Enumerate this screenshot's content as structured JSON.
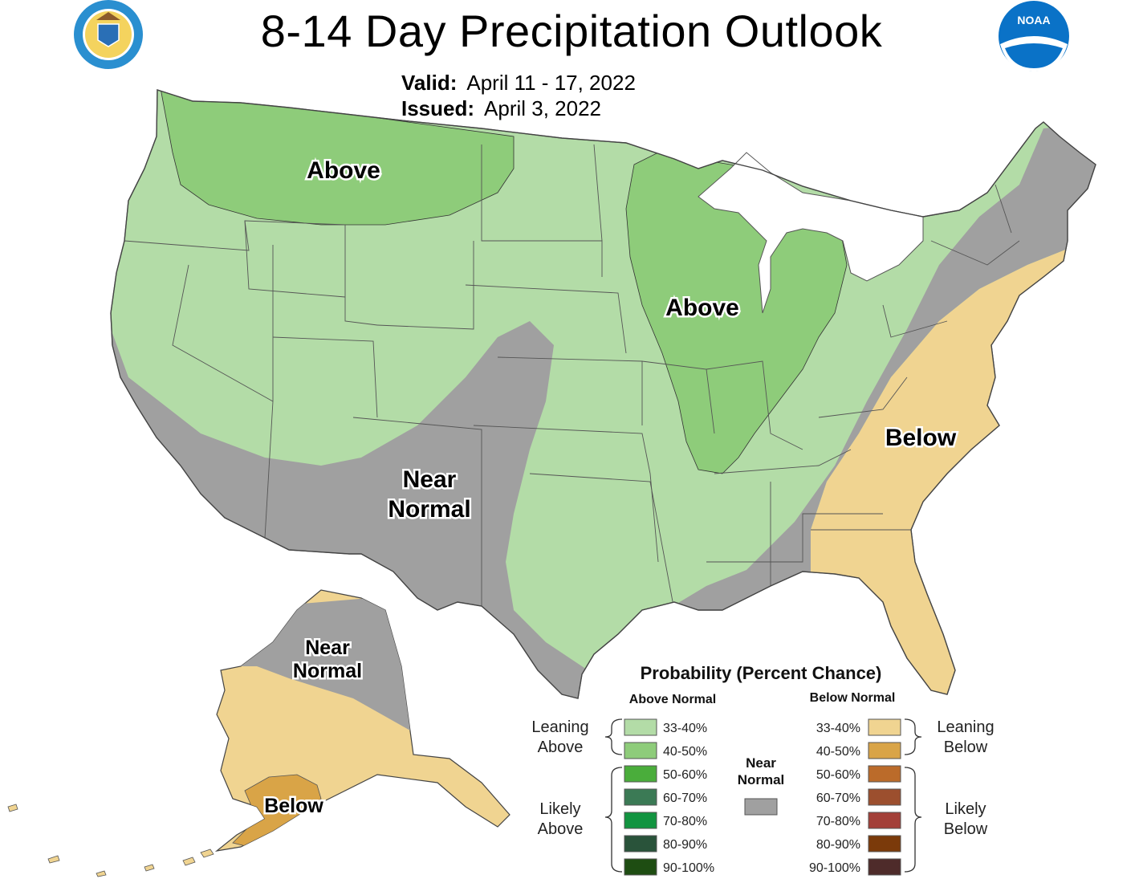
{
  "header": {
    "title": "8-14 Day Precipitation Outlook",
    "valid_label": "Valid:",
    "valid_value": "April 11 - 17, 2022",
    "issued_label": "Issued:",
    "issued_value": "April 3, 2022"
  },
  "logos": {
    "left": {
      "icon": "department-of-commerce-seal"
    },
    "right": {
      "icon": "noaa-logo"
    }
  },
  "map_labels": {
    "northwest": "Above",
    "midwest": "Above",
    "southwest_line1": "Near",
    "southwest_line2": "Normal",
    "southeast": "Below",
    "alaska_north_line1": "Near",
    "alaska_north_line2": "Normal",
    "alaska_south": "Below"
  },
  "legend": {
    "title": "Probability (Percent Chance)",
    "above_header": "Above Normal",
    "below_header": "Below Normal",
    "near_label_line1": "Near",
    "near_label_line2": "Normal",
    "near_color": "#a0a0a0",
    "leaning_above_line1": "Leaning",
    "leaning_above_line2": "Above",
    "likely_above_line1": "Likely",
    "likely_above_line2": "Above",
    "leaning_below_line1": "Leaning",
    "leaning_below_line2": "Below",
    "likely_below_line1": "Likely",
    "likely_below_line2": "Below",
    "above": [
      {
        "range": "33-40%",
        "color": "#b3dca7"
      },
      {
        "range": "40-50%",
        "color": "#8ecc7a"
      },
      {
        "range": "50-60%",
        "color": "#4aad3b"
      },
      {
        "range": "60-70%",
        "color": "#3b7a55"
      },
      {
        "range": "70-80%",
        "color": "#129440"
      },
      {
        "range": "80-90%",
        "color": "#29533a"
      },
      {
        "range": "90-100%",
        "color": "#1e4d12"
      }
    ],
    "below": [
      {
        "range": "33-40%",
        "color": "#f0d491"
      },
      {
        "range": "40-50%",
        "color": "#d9a447"
      },
      {
        "range": "50-60%",
        "color": "#bb6b2a"
      },
      {
        "range": "60-70%",
        "color": "#9c4f2e"
      },
      {
        "range": "70-80%",
        "color": "#a33f38"
      },
      {
        "range": "80-90%",
        "color": "#7b3a0a"
      },
      {
        "range": "90-100%",
        "color": "#4e2b2a"
      }
    ]
  }
}
